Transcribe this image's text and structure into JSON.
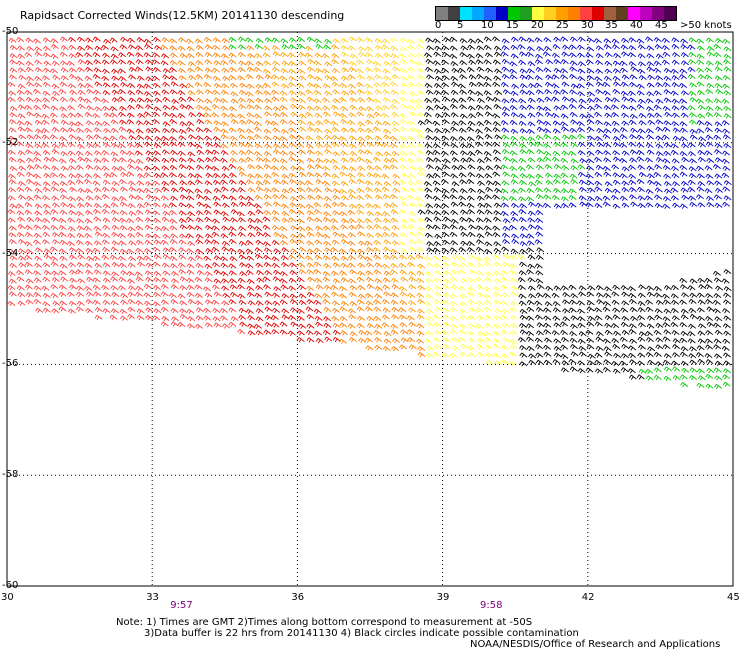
{
  "title": "Rapidsact Corrected Winds(12.5KM) 20141130 descending",
  "legend": {
    "labels": [
      "0",
      "5",
      "10",
      "15",
      "20",
      "25",
      "30",
      "35",
      "40",
      "45",
      ">50 knots"
    ],
    "colors": [
      "#808080",
      "#404040",
      "#00e0ff",
      "#00a8ff",
      "#2060ff",
      "#0000c8",
      "#00c800",
      "#20a020",
      "#ffff40",
      "#ffd020",
      "#ffa000",
      "#ff8000",
      "#ff4040",
      "#e00000",
      "#a06040",
      "#604020",
      "#ff00ff",
      "#c000c0",
      "#800080",
      "#500050"
    ]
  },
  "map": {
    "lon_range": [
      30,
      45
    ],
    "lat_range": [
      -60,
      -50
    ],
    "lon_ticks": [
      "30",
      "33",
      "36",
      "39",
      "42",
      "45"
    ],
    "lat_ticks": [
      "-50",
      "-52",
      "-54",
      "-56",
      "-58",
      "-60"
    ],
    "pass_times": [
      {
        "label": "9:57",
        "lon": 33.6
      },
      {
        "label": "9:58",
        "lon": 40.0
      }
    ]
  },
  "notes": {
    "line1": "Note: 1) Times are GMT 2)Times along bottom correspond to measurement at -50S",
    "line2": "3)Data buffer is 22 hrs from 20141130 4) Black circles indicate possible contamination"
  },
  "credit": "NOAA/NESDIS/Office of Research and Applications"
}
